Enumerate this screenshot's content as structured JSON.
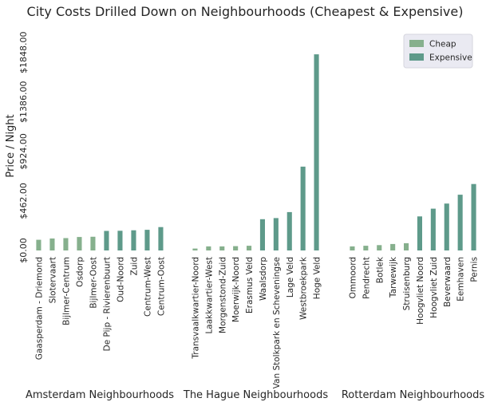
{
  "chart_data": {
    "type": "bar",
    "title": "City Costs Drilled Down on Neighbourhoods (Cheapest & Expensive)",
    "ylabel": "Price / Night",
    "ylim": [
      0,
      1950
    ],
    "yticks": [
      0,
      462,
      924,
      1386,
      1848
    ],
    "ytick_labels": [
      "$0.00",
      "$462.00",
      "$924.00",
      "$1386.00",
      "$1848.00"
    ],
    "grid": false,
    "legend": {
      "placement": "top-right",
      "entries": [
        "Cheap",
        "Expensive"
      ]
    },
    "colors": {
      "Cheap": "#86b08d",
      "Expensive": "#5e9a8a"
    },
    "panels": [
      {
        "xlabel": "Amsterdam Neighbourhoods",
        "categories": [
          "Gaasperdam - Driemond",
          "Slotervaart",
          "Bijlmer-Centrum",
          "Osdorp",
          "Bijlmer-Oost",
          "De Pijp - Rivierenbuurt",
          "Oud-Noord",
          "Zuid",
          "Centrum-West",
          "Centrum-Oost"
        ],
        "groups": [
          "Cheap",
          "Cheap",
          "Cheap",
          "Cheap",
          "Cheap",
          "Expensive",
          "Expensive",
          "Expensive",
          "Expensive",
          "Expensive"
        ],
        "values": [
          100,
          112,
          115,
          126,
          128,
          182,
          184,
          188,
          193,
          218
        ]
      },
      {
        "xlabel": "The Hague Neighbourhoods",
        "categories": [
          "Transvaalkwartier-Noord",
          "Laakkwartier-West",
          "Morgenstond-Zuid",
          "Moerwijk-Noord",
          "Erasmus Veld",
          "Waalsdorp",
          "Van Stolkpark en Scheveningse",
          "Lage Veld",
          "Westbroekpark",
          "Hoge Veld"
        ],
        "groups": [
          "Cheap",
          "Cheap",
          "Cheap",
          "Cheap",
          "Cheap",
          "Expensive",
          "Expensive",
          "Expensive",
          "Expensive",
          "Expensive"
        ],
        "values": [
          18,
          38,
          38,
          40,
          44,
          292,
          302,
          358,
          782,
          1830
        ]
      },
      {
        "xlabel": "Rotterdam Neighbourhoods",
        "categories": [
          "Ommoord",
          "Pendrecht",
          "Botlek",
          "Tarwewijk",
          "Struisenburg",
          "Hoogvliet Noord",
          "Hoogvliet Zuid",
          "Beverwaard",
          "Eemhaven",
          "Pernis"
        ],
        "groups": [
          "Cheap",
          "Cheap",
          "Cheap",
          "Cheap",
          "Cheap",
          "Expensive",
          "Expensive",
          "Expensive",
          "Expensive",
          "Expensive"
        ],
        "values": [
          38,
          44,
          50,
          60,
          68,
          318,
          390,
          438,
          520,
          620
        ]
      }
    ]
  }
}
